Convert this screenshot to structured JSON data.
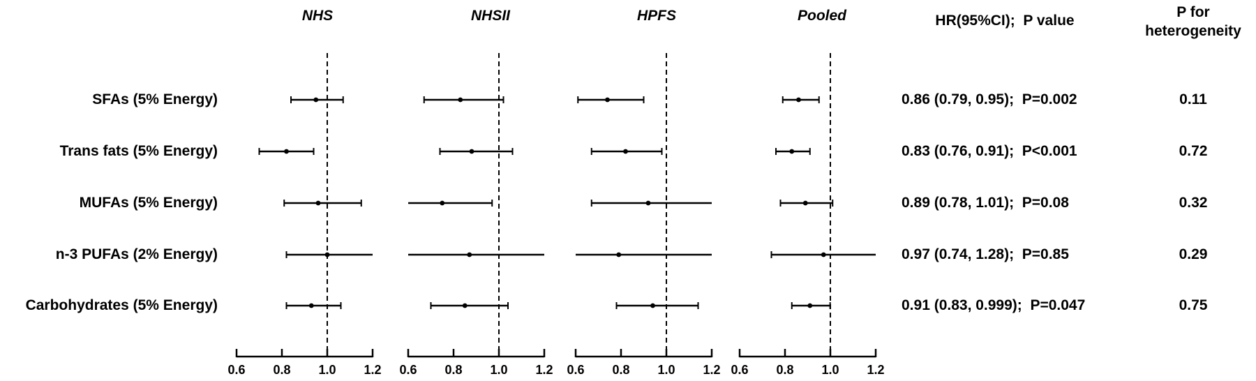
{
  "chart_data": {
    "type": "forest",
    "title": "",
    "axis": {
      "min": 0.6,
      "max": 1.2,
      "ticks": [
        0.6,
        0.8,
        1.0,
        1.2
      ],
      "tick_labels": [
        "0.6",
        "0.8",
        "1.0",
        "1.2"
      ],
      "reference_line": 1.0
    },
    "panels": [
      "NHS",
      "NHSII",
      "HPFS",
      "Pooled"
    ],
    "columns": {
      "hr_header": "HR(95%CI);  P value",
      "phet_header_line1": "P for",
      "phet_header_line2": "heterogeneity"
    },
    "rows": [
      {
        "label": "SFAs (5% Energy)",
        "hr_text": "0.86 (0.79, 0.95);  P=0.002",
        "p_heterogeneity": "0.11",
        "estimates": [
          {
            "hr": 0.95,
            "lo": 0.84,
            "hi": 1.07
          },
          {
            "hr": 0.83,
            "lo": 0.67,
            "hi": 1.02
          },
          {
            "hr": 0.74,
            "lo": 0.61,
            "hi": 0.9
          },
          {
            "hr": 0.86,
            "lo": 0.79,
            "hi": 0.95
          }
        ]
      },
      {
        "label": "Trans fats (5% Energy)",
        "hr_text": "0.83 (0.76, 0.91);  P<0.001",
        "p_heterogeneity": "0.72",
        "estimates": [
          {
            "hr": 0.82,
            "lo": 0.7,
            "hi": 0.94
          },
          {
            "hr": 0.88,
            "lo": 0.74,
            "hi": 1.06
          },
          {
            "hr": 0.82,
            "lo": 0.67,
            "hi": 0.98
          },
          {
            "hr": 0.83,
            "lo": 0.76,
            "hi": 0.91
          }
        ]
      },
      {
        "label": "MUFAs (5% Energy)",
        "hr_text": "0.89 (0.78, 1.01);  P=0.08",
        "p_heterogeneity": "0.32",
        "estimates": [
          {
            "hr": 0.96,
            "lo": 0.81,
            "hi": 1.15
          },
          {
            "hr": 0.75,
            "lo": 0.6,
            "hi": 0.97
          },
          {
            "hr": 0.92,
            "lo": 0.67,
            "hi": 1.21
          },
          {
            "hr": 0.89,
            "lo": 0.78,
            "hi": 1.01
          }
        ]
      },
      {
        "label": "n-3 PUFAs (2% Energy)",
        "hr_text": "0.97 (0.74, 1.28);  P=0.85",
        "p_heterogeneity": "0.29",
        "estimates": [
          {
            "hr": 1.0,
            "lo": 0.82,
            "hi": 1.21
          },
          {
            "hr": 0.87,
            "lo": 0.6,
            "hi": 1.2
          },
          {
            "hr": 0.79,
            "lo": 0.6,
            "hi": 1.21
          },
          {
            "hr": 0.97,
            "lo": 0.74,
            "hi": 1.28
          }
        ]
      },
      {
        "label": "Carbohydrates (5% Energy)",
        "hr_text": "0.91 (0.83, 0.999);  P=0.047",
        "p_heterogeneity": "0.75",
        "estimates": [
          {
            "hr": 0.93,
            "lo": 0.82,
            "hi": 1.06
          },
          {
            "hr": 0.85,
            "lo": 0.7,
            "hi": 1.04
          },
          {
            "hr": 0.94,
            "lo": 0.78,
            "hi": 1.14
          },
          {
            "hr": 0.91,
            "lo": 0.83,
            "hi": 0.999
          }
        ]
      }
    ],
    "colors": {
      "ink": "#000000",
      "background": "#ffffff"
    },
    "layout_hints": {
      "grid": false,
      "legend": false,
      "x_scale": "linear"
    }
  }
}
